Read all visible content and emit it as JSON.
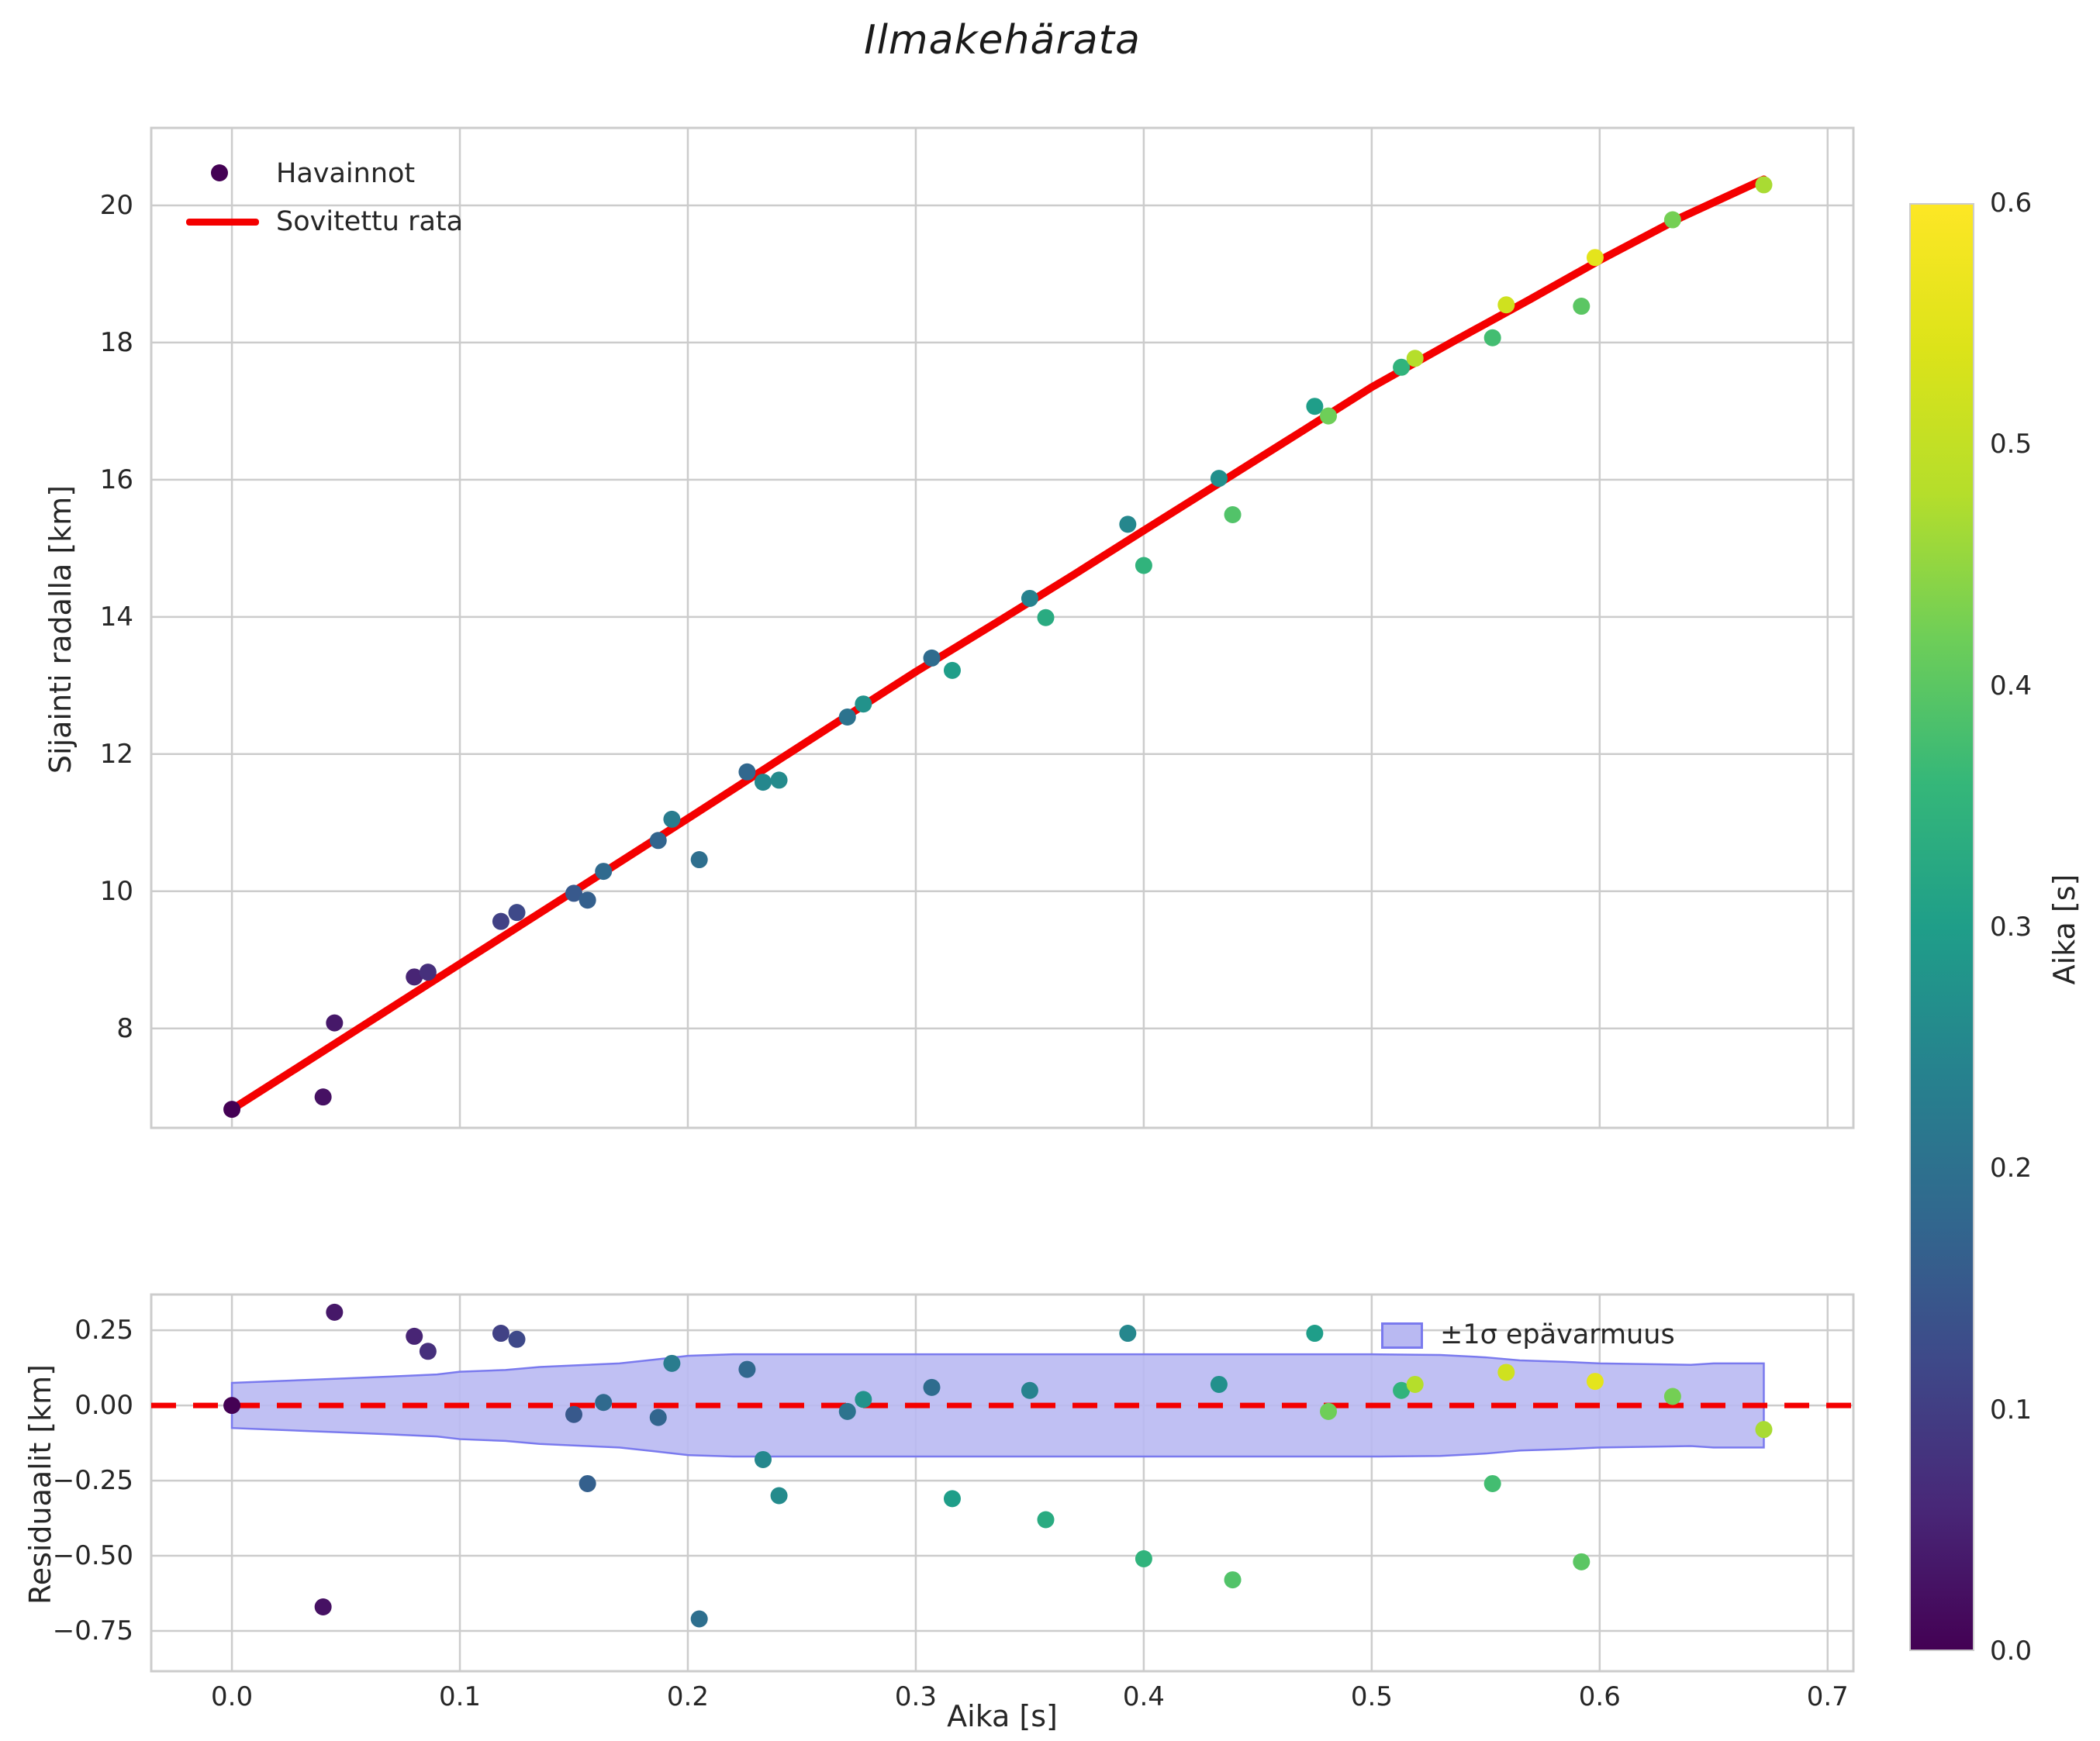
{
  "title": "Ilmakehärata",
  "colors": {
    "accent_red": "#f40000",
    "band_fill": "#b9b9f2",
    "band_edge": "#7a7aee",
    "grid": "#cccccc",
    "spine": "#cccccc",
    "text": "#262626",
    "legend_marker_purple": "#440154"
  },
  "chart_data": [
    {
      "type": "scatter",
      "title": "Ilmakehärata",
      "xlabel": "Aika [s]",
      "ylabel": "Sijainti radalla [km]",
      "xlim": [
        -0.0354,
        0.7113
      ],
      "ylim": [
        6.55,
        21.13
      ],
      "grid": true,
      "legend_position": "upper left",
      "xticks": {
        "values": [
          0.0,
          0.1,
          0.2,
          0.3,
          0.4,
          0.5,
          0.6,
          0.7
        ],
        "labels": [
          "",
          "",
          "",
          "",
          "",
          "",
          "",
          ""
        ]
      },
      "yticks": {
        "values": [
          8,
          10,
          12,
          14,
          16,
          18,
          20
        ],
        "labels": [
          "8",
          "10",
          "12",
          "14",
          "16",
          "18",
          "20"
        ]
      },
      "series": [
        {
          "name": "Havainnot",
          "kind": "scatter",
          "colormap": "viridis",
          "color_vmin": 0.0,
          "color_vmax": 0.6,
          "x": [
            0.0,
            0.04,
            0.045,
            0.08,
            0.086,
            0.118,
            0.125,
            0.15,
            0.156,
            0.163,
            0.187,
            0.193,
            0.205,
            0.226,
            0.233,
            0.24,
            0.27,
            0.277,
            0.307,
            0.316,
            0.35,
            0.357,
            0.393,
            0.4,
            0.433,
            0.439,
            0.475,
            0.481,
            0.513,
            0.519,
            0.553,
            0.559,
            0.592,
            0.598,
            0.632,
            0.672
          ],
          "y": [
            6.82,
            7.0,
            8.08,
            8.75,
            8.82,
            9.56,
            9.69,
            9.97,
            9.87,
            10.29,
            10.74,
            11.05,
            10.46,
            11.74,
            11.59,
            11.62,
            12.54,
            12.73,
            13.4,
            13.22,
            14.27,
            13.99,
            15.35,
            14.75,
            16.02,
            15.49,
            17.07,
            16.93,
            17.64,
            17.77,
            18.07,
            18.55,
            18.53,
            19.24,
            19.79,
            20.3
          ],
          "color_value": [
            0.0,
            0.025,
            0.035,
            0.055,
            0.075,
            0.105,
            0.12,
            0.15,
            0.165,
            0.185,
            0.175,
            0.225,
            0.195,
            0.18,
            0.25,
            0.26,
            0.205,
            0.275,
            0.19,
            0.3,
            0.24,
            0.33,
            0.25,
            0.35,
            0.27,
            0.39,
            0.3,
            0.42,
            0.35,
            0.48,
            0.375,
            0.52,
            0.4,
            0.555,
            0.425,
            0.47
          ]
        },
        {
          "name": "Sovitettu rata",
          "kind": "line",
          "color": "#f40000",
          "x": [
            0.0,
            0.034,
            0.067,
            0.1,
            0.134,
            0.168,
            0.2,
            0.235,
            0.27,
            0.3,
            0.336,
            0.37,
            0.4,
            0.436,
            0.47,
            0.5,
            0.536,
            0.57,
            0.6,
            0.636,
            0.672
          ],
          "y": [
            6.82,
            7.54,
            8.24,
            8.94,
            9.66,
            10.38,
            11.06,
            11.81,
            12.56,
            13.2,
            13.93,
            14.63,
            15.26,
            16.01,
            16.72,
            17.35,
            18.02,
            18.64,
            19.2,
            19.83,
            20.38
          ]
        }
      ]
    },
    {
      "type": "scatter",
      "xlabel": "Aika [s]",
      "ylabel": "Residuaalit [km]",
      "xlim": [
        -0.0354,
        0.7113
      ],
      "ylim": [
        -0.884,
        0.369
      ],
      "grid": true,
      "legend_position": "upper right",
      "xticks": {
        "values": [
          0.0,
          0.1,
          0.2,
          0.3,
          0.4,
          0.5,
          0.6,
          0.7
        ],
        "labels": [
          "0.0",
          "0.1",
          "0.2",
          "0.3",
          "0.4",
          "0.5",
          "0.6",
          "0.7"
        ]
      },
      "yticks": {
        "values": [
          0.25,
          0.0,
          -0.25,
          -0.5,
          -0.75
        ],
        "labels": [
          "0.25",
          "0.00",
          "−0.25",
          "−0.50",
          "−0.75"
        ]
      },
      "series": [
        {
          "name": "±1σ epävarmuus",
          "kind": "band",
          "fill": "#b9b9f2",
          "edge": "#7a7aee",
          "x": [
            0.0,
            0.03,
            0.06,
            0.09,
            0.1,
            0.12,
            0.135,
            0.15,
            0.17,
            0.185,
            0.2,
            0.22,
            0.3,
            0.4,
            0.5,
            0.53,
            0.55,
            0.565,
            0.585,
            0.6,
            0.64,
            0.65,
            0.672
          ],
          "halfwidth": [
            0.075,
            0.084,
            0.093,
            0.103,
            0.112,
            0.118,
            0.128,
            0.133,
            0.14,
            0.152,
            0.165,
            0.17,
            0.17,
            0.17,
            0.17,
            0.168,
            0.16,
            0.15,
            0.145,
            0.14,
            0.135,
            0.14,
            0.14
          ]
        },
        {
          "name": "zero-line",
          "kind": "dashed-hline",
          "y": 0.0,
          "color": "#f40000"
        },
        {
          "name": "residuals",
          "kind": "scatter",
          "colormap": "viridis",
          "color_vmin": 0.0,
          "color_vmax": 0.6,
          "x": [
            0.0,
            0.04,
            0.045,
            0.08,
            0.086,
            0.118,
            0.125,
            0.15,
            0.156,
            0.163,
            0.187,
            0.193,
            0.205,
            0.226,
            0.233,
            0.24,
            0.27,
            0.277,
            0.307,
            0.316,
            0.35,
            0.357,
            0.393,
            0.4,
            0.433,
            0.439,
            0.475,
            0.481,
            0.513,
            0.519,
            0.553,
            0.559,
            0.592,
            0.598,
            0.632,
            0.672
          ],
          "y": [
            0.0,
            -0.67,
            0.31,
            0.23,
            0.18,
            0.24,
            0.22,
            -0.03,
            -0.26,
            0.01,
            -0.04,
            0.14,
            -0.71,
            0.12,
            -0.18,
            -0.3,
            -0.02,
            0.02,
            0.06,
            -0.31,
            0.05,
            -0.38,
            0.24,
            -0.51,
            0.07,
            -0.58,
            0.24,
            -0.02,
            0.05,
            0.07,
            -0.26,
            0.11,
            -0.52,
            0.08,
            0.03,
            -0.08
          ],
          "color_value": [
            0.0,
            0.025,
            0.035,
            0.055,
            0.075,
            0.105,
            0.12,
            0.15,
            0.165,
            0.185,
            0.175,
            0.225,
            0.195,
            0.18,
            0.25,
            0.26,
            0.205,
            0.275,
            0.19,
            0.3,
            0.24,
            0.33,
            0.25,
            0.35,
            0.27,
            0.39,
            0.3,
            0.42,
            0.35,
            0.48,
            0.375,
            0.52,
            0.4,
            0.555,
            0.425,
            0.47
          ]
        }
      ]
    }
  ],
  "top_legend": {
    "item1": "Havainnot",
    "item2": "Sovitettu rata"
  },
  "bottom_legend": {
    "item1": "±1σ epävarmuus"
  },
  "colorbar": {
    "label": "Aika [s]",
    "vmin": 0.0,
    "vmax": 0.6,
    "ticks": {
      "values": [
        0.0,
        0.1,
        0.2,
        0.3,
        0.4,
        0.5,
        0.6
      ],
      "labels": [
        "0.0",
        "0.1",
        "0.2",
        "0.3",
        "0.4",
        "0.5",
        "0.6"
      ]
    },
    "colormap": "viridis",
    "colormap_stops": [
      "#440154",
      "#482878",
      "#3e4989",
      "#31688e",
      "#26828e",
      "#1f9e89",
      "#35b779",
      "#6ece58",
      "#b5de2b",
      "#dce319",
      "#fde725"
    ]
  }
}
